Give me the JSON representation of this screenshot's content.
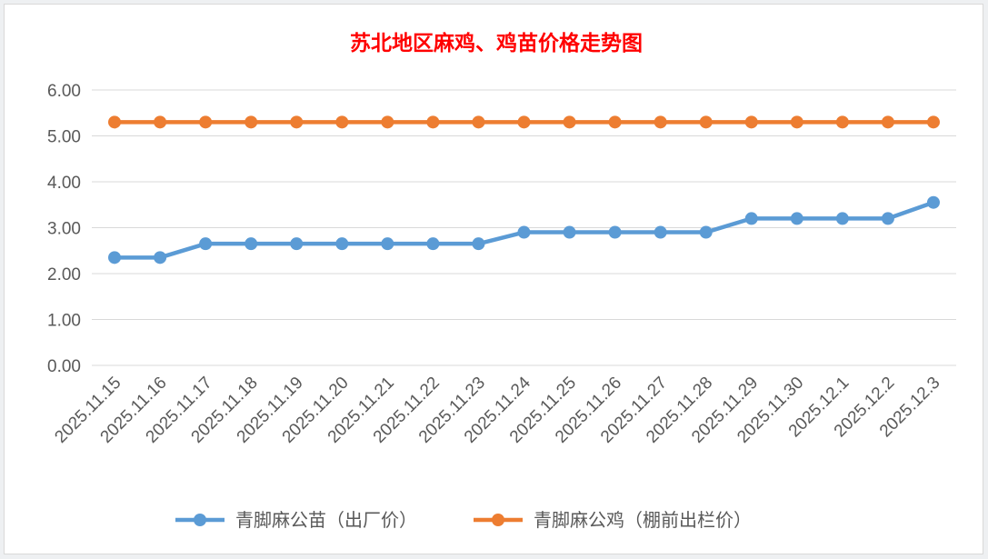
{
  "chart_data": {
    "type": "line",
    "title": "苏北地区麻鸡、鸡苗价格走势图",
    "categories": [
      "2025.11.15",
      "2025.11.16",
      "2025.11.17",
      "2025.11.18",
      "2025.11.19",
      "2025.11.20",
      "2025.11.21",
      "2025.11.22",
      "2025.11.23",
      "2025.11.24",
      "2025.11.25",
      "2025.11.26",
      "2025.11.27",
      "2025.11.28",
      "2025.11.29",
      "2025.11.30",
      "2025.12.1",
      "2025.12.2",
      "2025.12.3"
    ],
    "series": [
      {
        "name": "青脚麻公苗（出厂价）",
        "color": "#5b9bd5",
        "values": [
          2.35,
          2.35,
          2.65,
          2.65,
          2.65,
          2.65,
          2.65,
          2.65,
          2.65,
          2.9,
          2.9,
          2.9,
          2.9,
          2.9,
          3.2,
          3.2,
          3.2,
          3.2,
          3.55
        ]
      },
      {
        "name": "青脚麻公鸡（棚前出栏价）",
        "color": "#ed7d31",
        "values": [
          5.3,
          5.3,
          5.3,
          5.3,
          5.3,
          5.3,
          5.3,
          5.3,
          5.3,
          5.3,
          5.3,
          5.3,
          5.3,
          5.3,
          5.3,
          5.3,
          5.3,
          5.3,
          5.3
        ]
      }
    ],
    "ylim": [
      0,
      6
    ],
    "yticks": [
      "0.00",
      "1.00",
      "2.00",
      "3.00",
      "4.00",
      "5.00",
      "6.00"
    ],
    "grid": true,
    "legend_position": "bottom",
    "title_color": "#ff0000"
  }
}
